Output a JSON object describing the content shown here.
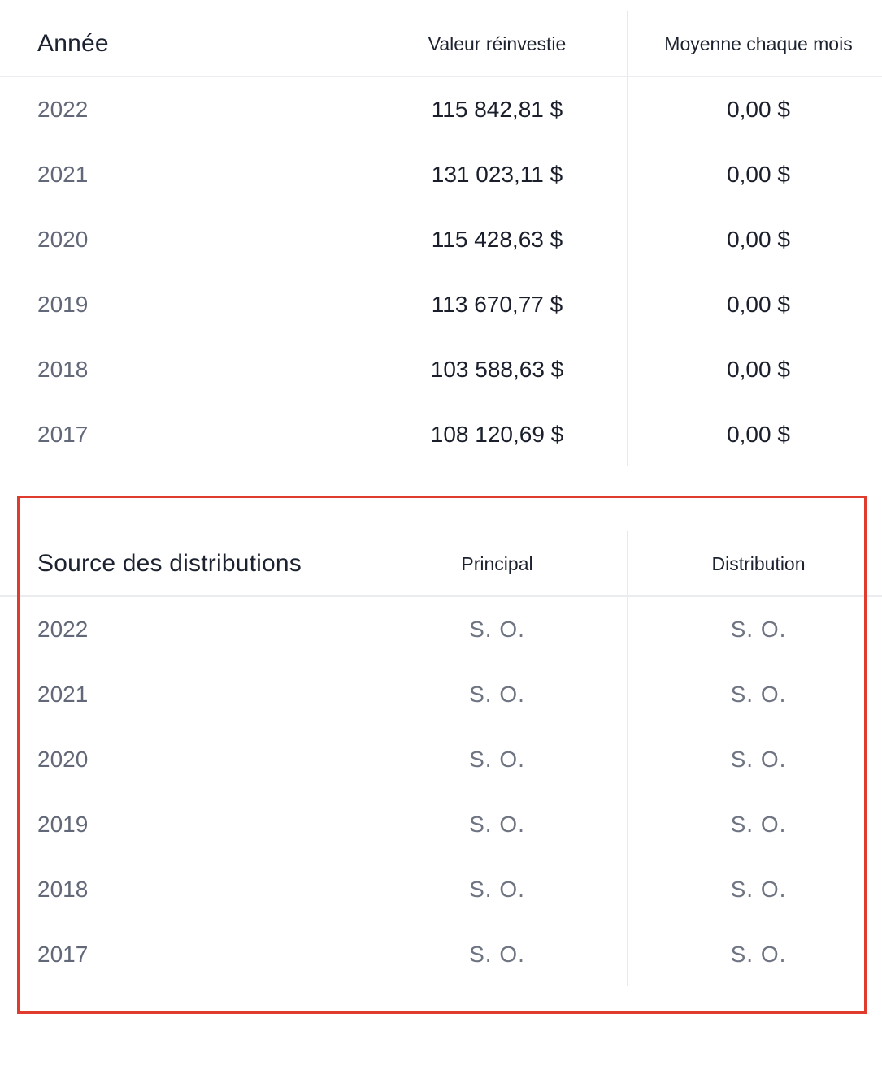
{
  "reinvest_table": {
    "headers": {
      "year": "Année",
      "reinvested": "Valeur réinvestie",
      "monthly_avg": "Moyenne chaque mois"
    },
    "rows": [
      {
        "year": "2022",
        "reinvested": "115 842,81 $",
        "monthly_avg": "0,00 $"
      },
      {
        "year": "2021",
        "reinvested": "131 023,11 $",
        "monthly_avg": "0,00 $"
      },
      {
        "year": "2020",
        "reinvested": "115 428,63 $",
        "monthly_avg": "0,00 $"
      },
      {
        "year": "2019",
        "reinvested": "113 670,77 $",
        "monthly_avg": "0,00 $"
      },
      {
        "year": "2018",
        "reinvested": "103 588,63 $",
        "monthly_avg": "0,00 $"
      },
      {
        "year": "2017",
        "reinvested": "108 120,69 $",
        "monthly_avg": "0,00 $"
      }
    ]
  },
  "source_table": {
    "headers": {
      "title": "Source des distributions",
      "principal": "Principal",
      "distribution": "Distribution"
    },
    "rows": [
      {
        "year": "2022",
        "principal": "S. O.",
        "distribution": "S. O."
      },
      {
        "year": "2021",
        "principal": "S. O.",
        "distribution": "S. O."
      },
      {
        "year": "2020",
        "principal": "S. O.",
        "distribution": "S. O."
      },
      {
        "year": "2019",
        "principal": "S. O.",
        "distribution": "S. O."
      },
      {
        "year": "2018",
        "principal": "S. O.",
        "distribution": "S. O."
      },
      {
        "year": "2017",
        "principal": "S. O.",
        "distribution": "S. O."
      }
    ]
  },
  "colors": {
    "highlight": "#e03c2d",
    "divider": "#e8e9ec"
  }
}
